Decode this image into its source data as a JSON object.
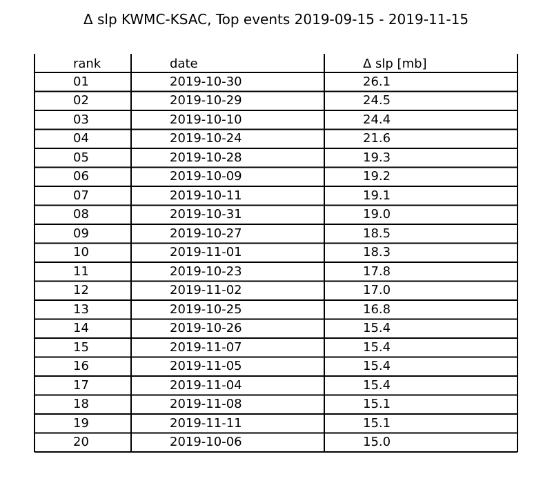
{
  "chart_data": {
    "type": "table",
    "title": "Δ slp KWMC-KSAC, Top events 2019-09-15 - 2019-11-15",
    "columns": [
      "rank",
      "date",
      "Δ slp [mb]"
    ],
    "rows": [
      [
        "01",
        "2019-10-30",
        "26.1"
      ],
      [
        "02",
        "2019-10-29",
        "24.5"
      ],
      [
        "03",
        "2019-10-10",
        "24.4"
      ],
      [
        "04",
        "2019-10-24",
        "21.6"
      ],
      [
        "05",
        "2019-10-28",
        "19.3"
      ],
      [
        "06",
        "2019-10-09",
        "19.2"
      ],
      [
        "07",
        "2019-10-11",
        "19.1"
      ],
      [
        "08",
        "2019-10-31",
        "19.0"
      ],
      [
        "09",
        "2019-10-27",
        "18.5"
      ],
      [
        "10",
        "2019-11-01",
        "18.3"
      ],
      [
        "11",
        "2019-10-23",
        "17.8"
      ],
      [
        "12",
        "2019-11-02",
        "17.0"
      ],
      [
        "13",
        "2019-10-25",
        "16.8"
      ],
      [
        "14",
        "2019-10-26",
        "15.4"
      ],
      [
        "15",
        "2019-11-07",
        "15.4"
      ],
      [
        "16",
        "2019-11-05",
        "15.4"
      ],
      [
        "17",
        "2019-11-04",
        "15.4"
      ],
      [
        "18",
        "2019-11-08",
        "15.1"
      ],
      [
        "19",
        "2019-11-11",
        "15.1"
      ],
      [
        "20",
        "2019-10-06",
        "15.0"
      ]
    ]
  }
}
